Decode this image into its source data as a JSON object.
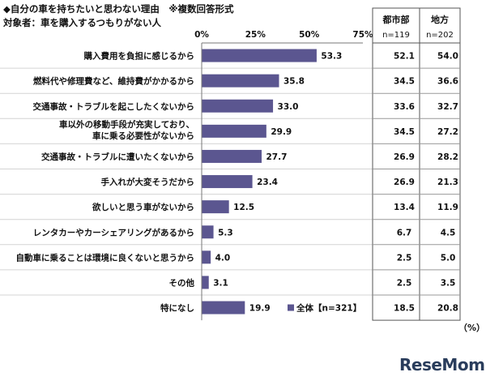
{
  "chart_data": {
    "type": "bar",
    "orientation": "horizontal",
    "title": "◆自分の車を持ちたいと思わない理由　※複数回答形式",
    "subtitle": "対象者：車を購入するつもりがない人",
    "categories": [
      "購入費用を負担に感じるから",
      "燃料代や修理費など、維持費がかかるから",
      "交通事故・トラブルを起こしたくないから",
      "車以外の移動手段が充実しており、\n車に乗る必要性がないから",
      "交通事故・トラブルに遭いたくないから",
      "手入れが大変そうだから",
      "欲しいと思う車がないから",
      "レンタカーやカーシェアリングがあるから",
      "自動車に乗ることは環境に良くないと思うから",
      "その他",
      "特になし"
    ],
    "series": [
      {
        "name": "全体【n=321】",
        "values": [
          53.3,
          35.8,
          33.0,
          29.9,
          27.7,
          23.4,
          12.5,
          5.3,
          4.0,
          3.1,
          19.9
        ],
        "color": "#5b5690"
      }
    ],
    "x_ticks": [
      "0%",
      "25%",
      "50%",
      "75%"
    ],
    "xlim": [
      0,
      75
    ],
    "value_labels": [
      "53.3",
      "35.8",
      "33.0",
      "29.9",
      "27.7",
      "23.4",
      "12.5",
      "5.3",
      "4.0",
      "3.1",
      "19.9"
    ],
    "legend_position": "bottom-right",
    "table": {
      "columns": [
        {
          "header": "都市部",
          "n": "n=119",
          "values": [
            "52.1",
            "34.5",
            "33.6",
            "34.5",
            "26.9",
            "26.9",
            "13.4",
            "6.7",
            "2.5",
            "2.5",
            "18.5"
          ]
        },
        {
          "header": "地方",
          "n": "n=202",
          "values": [
            "54.0",
            "36.6",
            "32.7",
            "27.2",
            "28.2",
            "21.3",
            "11.9",
            "4.5",
            "5.0",
            "3.5",
            "20.8"
          ]
        }
      ]
    },
    "unit_label": "（%）"
  },
  "brand": {
    "logo": "ReseMom"
  }
}
